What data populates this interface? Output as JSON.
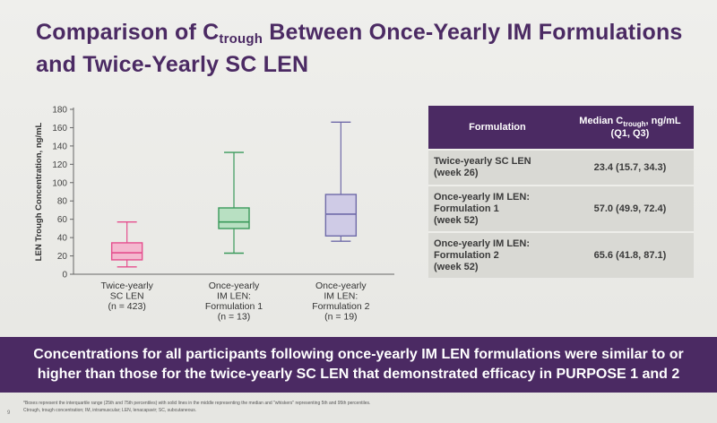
{
  "title": {
    "line1_prefix": "Comparison of C",
    "line1_sub": "trough",
    "line1_suffix": " Between Once-Yearly IM Formulations",
    "line2": "and Twice-Yearly SC LEN"
  },
  "chart_data": {
    "type": "boxplot",
    "ylabel": "LEN Trough Concentration, ng/mL",
    "ylim": [
      0,
      180
    ],
    "yticks": [
      "0",
      "20",
      "40",
      "60",
      "80",
      "100",
      "120",
      "140",
      "160",
      "180"
    ],
    "categories": [
      [
        "Twice-yearly",
        "SC LEN",
        "(n = 423)"
      ],
      [
        "Once-yearly",
        "IM LEN:",
        "Formulation 1",
        "(n = 13)"
      ],
      [
        "Once-yearly",
        "IM LEN:",
        "Formulation 2",
        "(n = 19)"
      ]
    ],
    "series": [
      {
        "name": "Twice-yearly SC LEN",
        "whisker_low": 8,
        "q1": 15.7,
        "median": 23.4,
        "q3": 34.3,
        "whisker_high": 57,
        "color": "#e54f8e",
        "fill": "#f4b8cf"
      },
      {
        "name": "Once-yearly IM LEN: Formulation 1",
        "whisker_low": 23,
        "q1": 49.9,
        "median": 57.0,
        "q3": 72.4,
        "whisker_high": 133,
        "color": "#3a9a5b",
        "fill": "#b8e0c2"
      },
      {
        "name": "Once-yearly IM LEN: Formulation 2",
        "whisker_low": 36,
        "q1": 41.8,
        "median": 65.6,
        "q3": 87.1,
        "whisker_high": 166,
        "color": "#6f6aa8",
        "fill": "#cfcbe6"
      }
    ]
  },
  "table": {
    "headers": [
      "Formulation",
      "Median C",
      "trough",
      ", ng/mL",
      "(Q1, Q3)"
    ],
    "rows": [
      {
        "label": [
          "Twice-yearly SC LEN",
          "(week 26)"
        ],
        "value": "23.4 (15.7, 34.3)"
      },
      {
        "label": [
          "Once-yearly IM LEN:",
          "Formulation 1",
          "(week 52)"
        ],
        "value": "57.0 (49.9, 72.4)"
      },
      {
        "label": [
          "Once-yearly IM LEN:",
          "Formulation 2",
          "(week 52)"
        ],
        "value": "65.6 (41.8, 87.1)"
      }
    ]
  },
  "banner": {
    "line1": "Concentrations for all participants following once-yearly IM LEN formulations were similar to or",
    "line2": "higher than those for the twice-yearly SC LEN that demonstrated efficacy in PURPOSE 1 and 2"
  },
  "footnotes": {
    "line1": "*Boxes represent the interquartile range (25th and 75th percentiles) with solid lines in the middle representing the median and \"whiskers\" representing 5th and 95th percentiles.",
    "line2": "Ctrough, trough concentration; IM, intramuscular; LEN, lenacapavir; SC, subcutaneous.",
    "page": "9"
  }
}
